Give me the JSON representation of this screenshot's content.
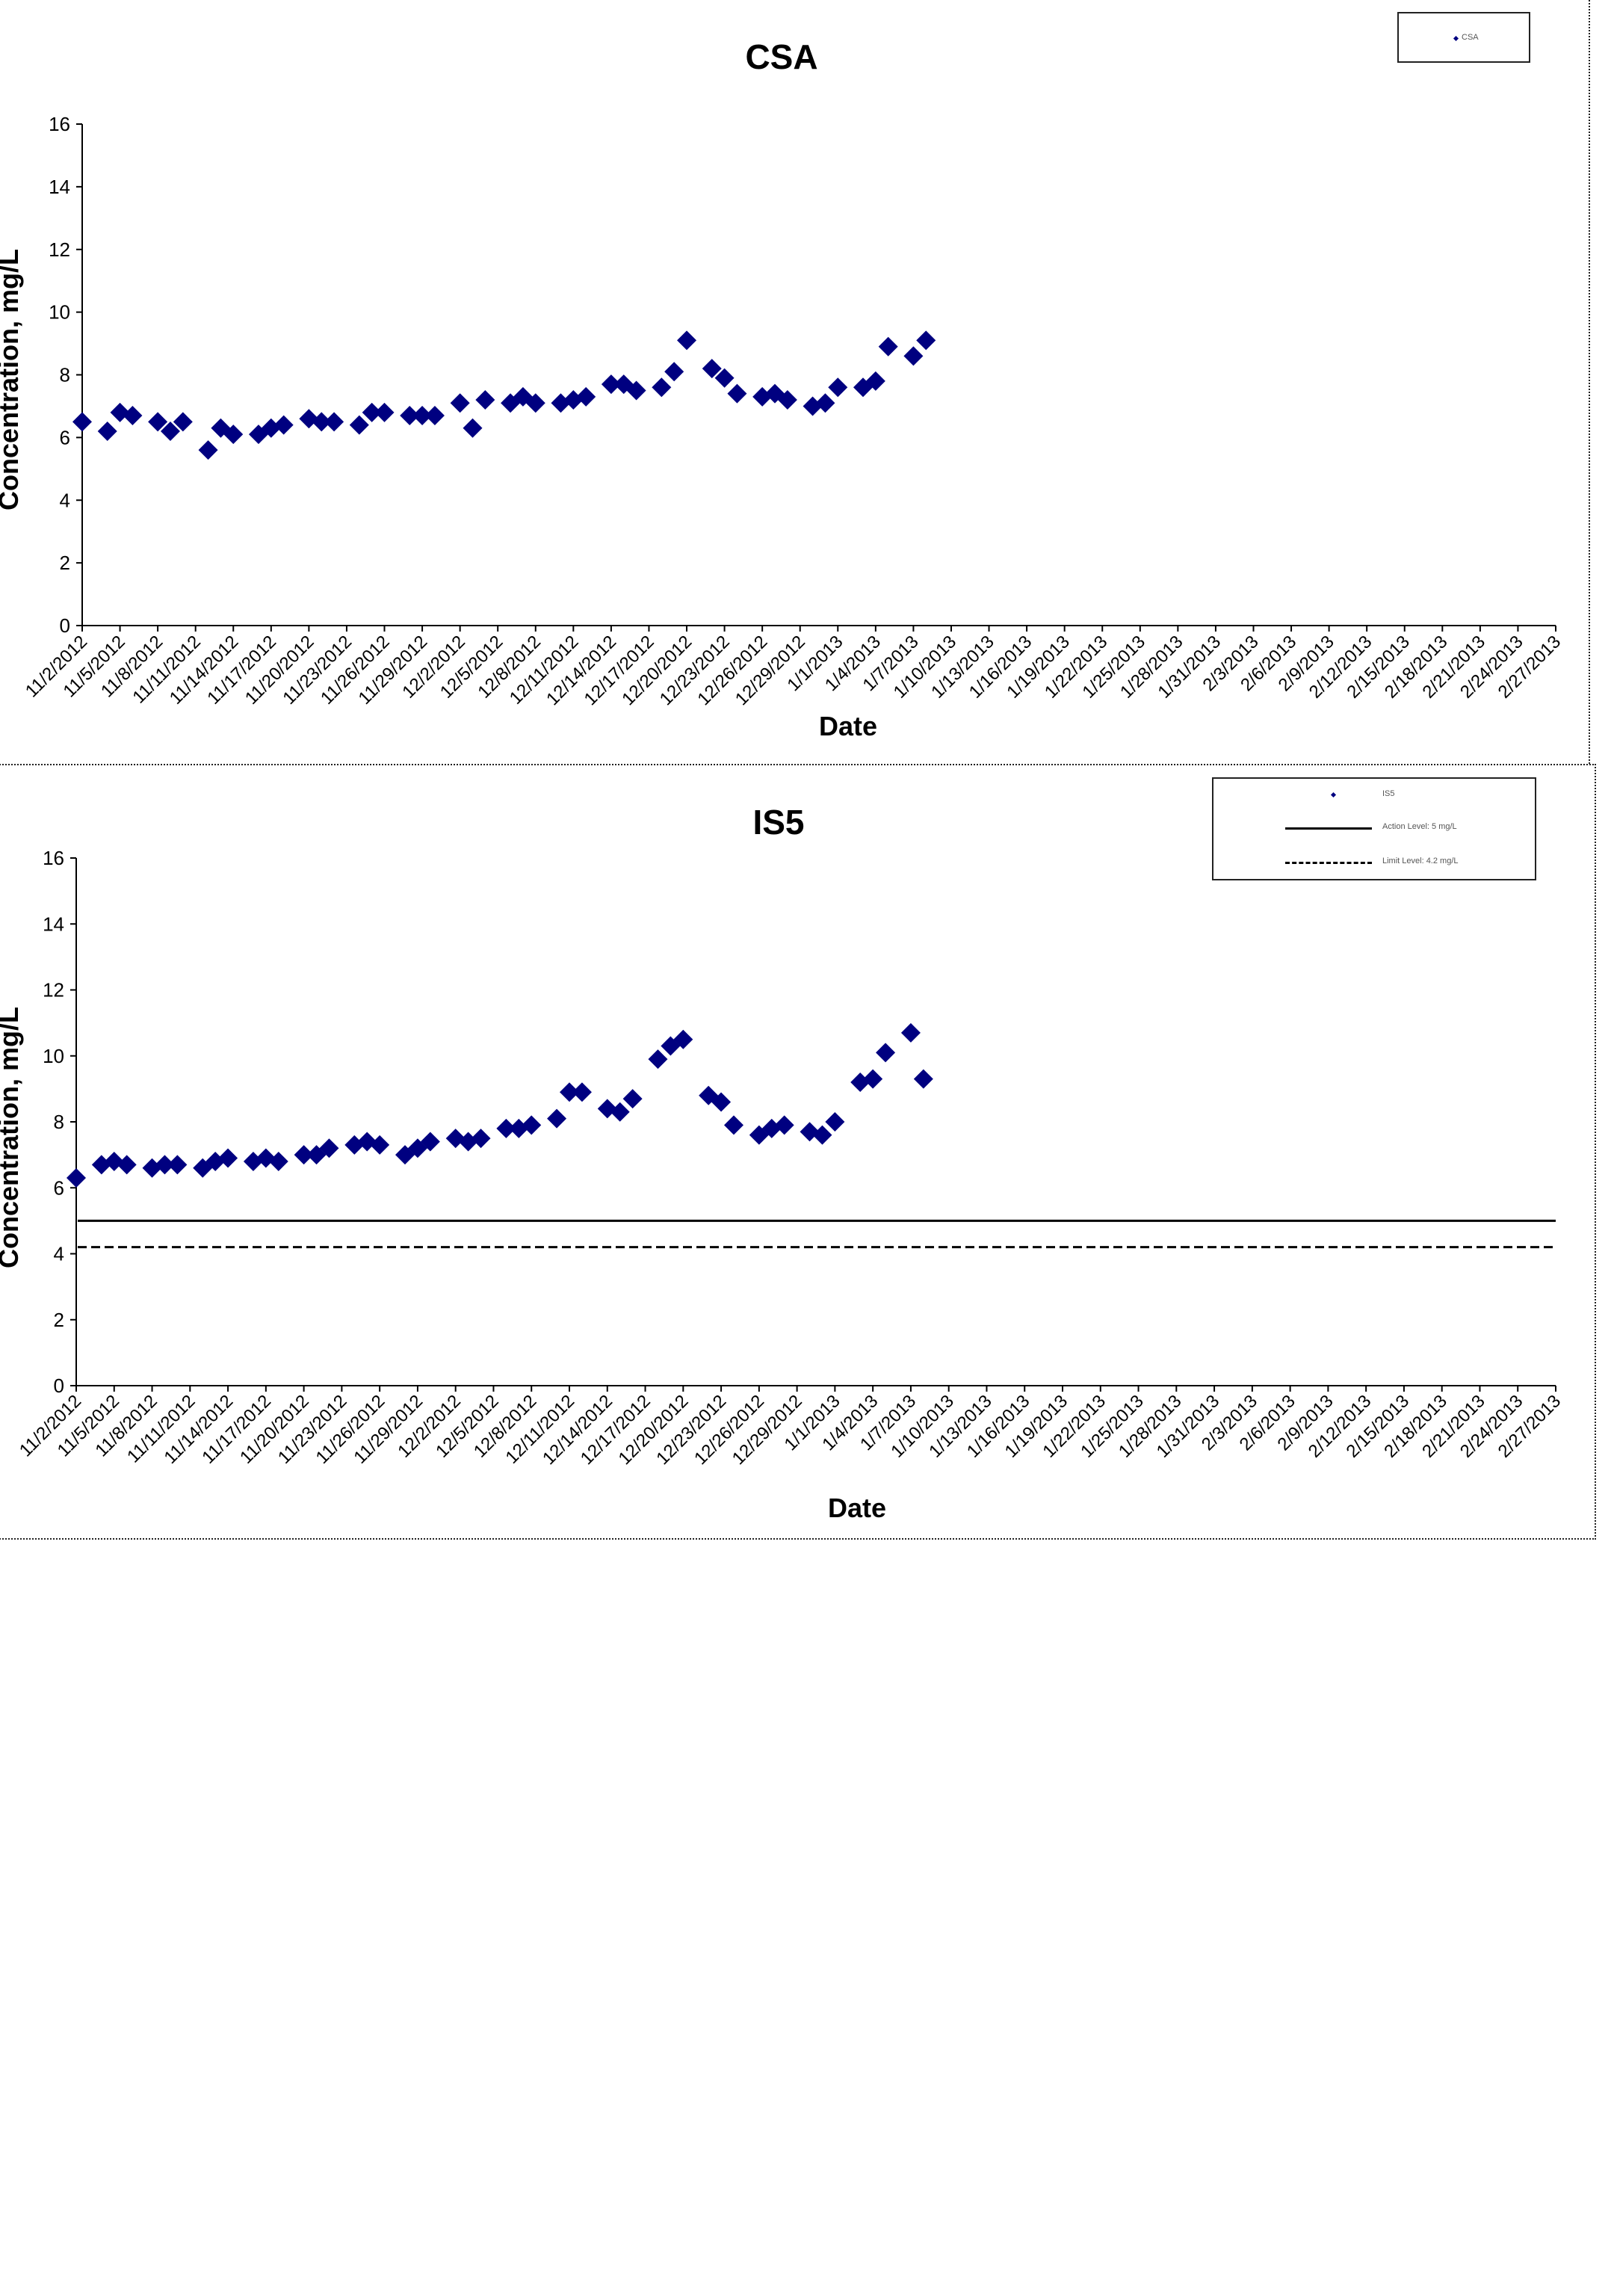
{
  "chart_data": [
    {
      "type": "scatter",
      "title": "CSA",
      "xlabel": "Date",
      "ylabel": "Concentration, mg/L",
      "ylim": [
        0,
        16
      ],
      "yticks": [
        "0",
        "2",
        "4",
        "6",
        "8",
        "10",
        "12",
        "14",
        "16"
      ],
      "xtick_labels": [
        "11/2/2012",
        "11/5/2012",
        "11/8/2012",
        "11/11/2012",
        "11/14/2012",
        "11/17/2012",
        "11/20/2012",
        "11/23/2012",
        "11/26/2012",
        "11/29/2012",
        "12/2/2012",
        "12/5/2012",
        "12/8/2012",
        "12/11/2012",
        "12/14/2012",
        "12/17/2012",
        "12/20/2012",
        "12/23/2012",
        "12/26/2012",
        "12/29/2012",
        "1/1/2013",
        "1/4/2013",
        "1/7/2013",
        "1/10/2013",
        "1/13/2013",
        "1/16/2013",
        "1/19/2013",
        "1/22/2013",
        "1/25/2013",
        "1/28/2013",
        "1/31/2013",
        "2/3/2013",
        "2/6/2013",
        "2/9/2013",
        "2/12/2013",
        "2/15/2013",
        "2/18/2013",
        "2/21/2013",
        "2/24/2013",
        "2/27/2013"
      ],
      "legend": {
        "position": "top-right",
        "entries": [
          "CSA"
        ]
      },
      "grid": false,
      "series": [
        {
          "name": "CSA",
          "color": "#000080",
          "marker": "diamond",
          "points": [
            [
              "11/2/2012",
              6.5
            ],
            [
              "11/4/2012",
              6.2
            ],
            [
              "11/5/2012",
              6.8
            ],
            [
              "11/6/2012",
              6.7
            ],
            [
              "11/8/2012",
              6.5
            ],
            [
              "11/9/2012",
              6.2
            ],
            [
              "11/10/2012",
              6.5
            ],
            [
              "11/12/2012",
              5.6
            ],
            [
              "11/13/2012",
              6.3
            ],
            [
              "11/14/2012",
              6.1
            ],
            [
              "11/16/2012",
              6.1
            ],
            [
              "11/17/2012",
              6.3
            ],
            [
              "11/18/2012",
              6.4
            ],
            [
              "11/20/2012",
              6.6
            ],
            [
              "11/21/2012",
              6.5
            ],
            [
              "11/22/2012",
              6.5
            ],
            [
              "11/24/2012",
              6.4
            ],
            [
              "11/25/2012",
              6.8
            ],
            [
              "11/26/2012",
              6.8
            ],
            [
              "11/28/2012",
              6.7
            ],
            [
              "11/29/2012",
              6.7
            ],
            [
              "11/30/2012",
              6.7
            ],
            [
              "12/2/2012",
              7.1
            ],
            [
              "12/3/2012",
              6.3
            ],
            [
              "12/4/2012",
              7.2
            ],
            [
              "12/6/2012",
              7.1
            ],
            [
              "12/7/2012",
              7.3
            ],
            [
              "12/8/2012",
              7.1
            ],
            [
              "12/10/2012",
              7.1
            ],
            [
              "12/11/2012",
              7.2
            ],
            [
              "12/12/2012",
              7.3
            ],
            [
              "12/14/2012",
              7.7
            ],
            [
              "12/15/2012",
              7.7
            ],
            [
              "12/16/2012",
              7.5
            ],
            [
              "12/18/2012",
              7.6
            ],
            [
              "12/19/2012",
              8.1
            ],
            [
              "12/20/2012",
              9.1
            ],
            [
              "12/22/2012",
              8.2
            ],
            [
              "12/23/2012",
              7.9
            ],
            [
              "12/24/2012",
              7.4
            ],
            [
              "12/26/2012",
              7.3
            ],
            [
              "12/27/2012",
              7.4
            ],
            [
              "12/28/2012",
              7.2
            ],
            [
              "12/30/2012",
              7.0
            ],
            [
              "12/31/2012",
              7.1
            ],
            [
              "1/1/2013",
              7.6
            ],
            [
              "1/3/2013",
              7.6
            ],
            [
              "1/4/2013",
              7.8
            ],
            [
              "1/5/2013",
              8.9
            ],
            [
              "1/7/2013",
              8.6
            ],
            [
              "1/8/2013",
              9.1
            ]
          ]
        }
      ]
    },
    {
      "type": "scatter",
      "title": "IS5",
      "xlabel": "Date",
      "ylabel": "Concentration, mg/L",
      "ylim": [
        0,
        16
      ],
      "yticks": [
        "0",
        "2",
        "4",
        "6",
        "8",
        "10",
        "12",
        "14",
        "16"
      ],
      "xtick_labels": [
        "11/2/2012",
        "11/5/2012",
        "11/8/2012",
        "11/11/2012",
        "11/14/2012",
        "11/17/2012",
        "11/20/2012",
        "11/23/2012",
        "11/26/2012",
        "11/29/2012",
        "12/2/2012",
        "12/5/2012",
        "12/8/2012",
        "12/11/2012",
        "12/14/2012",
        "12/17/2012",
        "12/20/2012",
        "12/23/2012",
        "12/26/2012",
        "12/29/2012",
        "1/1/2013",
        "1/4/2013",
        "1/7/2013",
        "1/10/2013",
        "1/13/2013",
        "1/16/2013",
        "1/19/2013",
        "1/22/2013",
        "1/25/2013",
        "1/28/2013",
        "1/31/2013",
        "2/3/2013",
        "2/6/2013",
        "2/9/2013",
        "2/12/2013",
        "2/15/2013",
        "2/18/2013",
        "2/21/2013",
        "2/24/2013",
        "2/27/2013"
      ],
      "legend": {
        "position": "top-right",
        "entries": [
          "IS5",
          "Action Level: 5 mg/L",
          "Limit Level: 4.2 mg/L"
        ]
      },
      "grid": false,
      "reference_lines": [
        {
          "name": "Action Level: 5 mg/L",
          "value": 5,
          "style": "solid",
          "color": "#000000"
        },
        {
          "name": "Limit Level: 4.2 mg/L",
          "value": 4.2,
          "style": "dashed",
          "color": "#000000"
        }
      ],
      "series": [
        {
          "name": "IS5",
          "color": "#000080",
          "marker": "diamond",
          "points": [
            [
              "11/2/2012",
              6.3
            ],
            [
              "11/4/2012",
              6.7
            ],
            [
              "11/5/2012",
              6.8
            ],
            [
              "11/6/2012",
              6.7
            ],
            [
              "11/8/2012",
              6.6
            ],
            [
              "11/9/2012",
              6.7
            ],
            [
              "11/10/2012",
              6.7
            ],
            [
              "11/12/2012",
              6.6
            ],
            [
              "11/13/2012",
              6.8
            ],
            [
              "11/14/2012",
              6.9
            ],
            [
              "11/16/2012",
              6.8
            ],
            [
              "11/17/2012",
              6.9
            ],
            [
              "11/18/2012",
              6.8
            ],
            [
              "11/20/2012",
              7.0
            ],
            [
              "11/21/2012",
              7.0
            ],
            [
              "11/22/2012",
              7.2
            ],
            [
              "11/24/2012",
              7.3
            ],
            [
              "11/25/2012",
              7.4
            ],
            [
              "11/26/2012",
              7.3
            ],
            [
              "11/28/2012",
              7.0
            ],
            [
              "11/29/2012",
              7.2
            ],
            [
              "11/30/2012",
              7.4
            ],
            [
              "12/2/2012",
              7.5
            ],
            [
              "12/3/2012",
              7.4
            ],
            [
              "12/4/2012",
              7.5
            ],
            [
              "12/6/2012",
              7.8
            ],
            [
              "12/7/2012",
              7.8
            ],
            [
              "12/8/2012",
              7.9
            ],
            [
              "12/10/2012",
              8.1
            ],
            [
              "12/11/2012",
              8.9
            ],
            [
              "12/12/2012",
              8.9
            ],
            [
              "12/14/2012",
              8.4
            ],
            [
              "12/15/2012",
              8.3
            ],
            [
              "12/16/2012",
              8.7
            ],
            [
              "12/18/2012",
              9.9
            ],
            [
              "12/19/2012",
              10.3
            ],
            [
              "12/20/2012",
              10.5
            ],
            [
              "12/22/2012",
              8.8
            ],
            [
              "12/23/2012",
              8.6
            ],
            [
              "12/24/2012",
              7.9
            ],
            [
              "12/26/2012",
              7.6
            ],
            [
              "12/27/2012",
              7.8
            ],
            [
              "12/28/2012",
              7.9
            ],
            [
              "12/30/2012",
              7.7
            ],
            [
              "12/31/2012",
              7.6
            ],
            [
              "1/1/2013",
              8.0
            ],
            [
              "1/3/2013",
              9.2
            ],
            [
              "1/4/2013",
              9.3
            ],
            [
              "1/5/2013",
              10.1
            ],
            [
              "1/7/2013",
              10.7
            ],
            [
              "1/8/2013",
              9.3
            ]
          ]
        }
      ]
    }
  ]
}
